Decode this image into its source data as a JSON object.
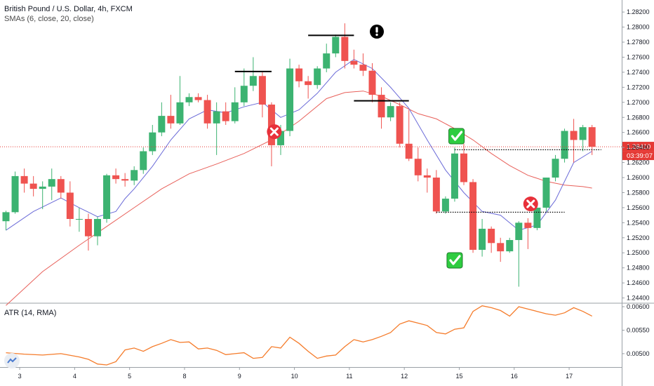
{
  "legend": {
    "title": "British Pound / U.S. Dollar, 4h, FXCM",
    "smas": "SMAs (6, close, 20, close)"
  },
  "atr_legend": "ATR (14, RMA)",
  "price_tag": "1.26410",
  "countdown_tag": "03:39:07",
  "colors": {
    "up": "#26a69a",
    "up_fill": "#3cb371",
    "down": "#ef5350",
    "sma_fast": "#6b6bd8",
    "sma_slow": "#e8605a",
    "atr": "#f57c2b",
    "price_line": "#e53935",
    "tag_bg": "#e53935"
  },
  "icons": [
    "warning-icon",
    "cross-icon",
    "check-icon"
  ],
  "chart_data": {
    "type": "candlestick",
    "title": "British Pound / U.S. Dollar, 4h, FXCM",
    "y_ticks": [
      "1.28200",
      "1.28000",
      "1.27800",
      "1.27600",
      "1.27400",
      "1.27200",
      "1.27000",
      "1.26800",
      "1.26600",
      "1.26400",
      "1.26200",
      "1.26000",
      "1.25800",
      "1.25600",
      "1.25400",
      "1.25200",
      "1.25000",
      "1.24800",
      "1.24600",
      "1.24400"
    ],
    "ylim": [
      1.2434,
      1.2836
    ],
    "x_ticks": [
      {
        "label": "3",
        "i": 1.5
      },
      {
        "label": "4",
        "i": 7.5
      },
      {
        "label": "5",
        "i": 13.5
      },
      {
        "label": "8",
        "i": 19.5
      },
      {
        "label": "9",
        "i": 25.5
      },
      {
        "label": "10",
        "i": 31.5
      },
      {
        "label": "11",
        "i": 37.5
      },
      {
        "label": "12",
        "i": 43.5
      },
      {
        "label": "15",
        "i": 49.5
      },
      {
        "label": "16",
        "i": 55.5
      },
      {
        "label": "17",
        "i": 61.5
      }
    ],
    "candles": [
      [
        1.2542,
        1.2556,
        1.253,
        1.2554
      ],
      [
        1.2554,
        1.2608,
        1.2552,
        1.2602
      ],
      [
        1.2602,
        1.2612,
        1.258,
        1.2592
      ],
      [
        1.2592,
        1.2602,
        1.2575,
        1.2585
      ],
      [
        1.2585,
        1.2595,
        1.2558,
        1.2588
      ],
      [
        1.2588,
        1.2612,
        1.257,
        1.2598
      ],
      [
        1.2598,
        1.2602,
        1.2572,
        1.258
      ],
      [
        1.258,
        1.2595,
        1.2535,
        1.2545
      ],
      [
        1.2545,
        1.256,
        1.2528,
        1.2545
      ],
      [
        1.2545,
        1.2552,
        1.2503,
        1.2522
      ],
      [
        1.2522,
        1.2548,
        1.251,
        1.2545
      ],
      [
        1.2545,
        1.2605,
        1.254,
        1.2603
      ],
      [
        1.2603,
        1.2612,
        1.2592,
        1.2598
      ],
      [
        1.2598,
        1.2606,
        1.2588,
        1.2596
      ],
      [
        1.2596,
        1.2615,
        1.259,
        1.261
      ],
      [
        1.261,
        1.264,
        1.2605,
        1.2635
      ],
      [
        1.2635,
        1.267,
        1.263,
        1.266
      ],
      [
        1.266,
        1.27,
        1.2655,
        1.2682
      ],
      [
        1.2682,
        1.271,
        1.2665,
        1.2672
      ],
      [
        1.2672,
        1.2735,
        1.267,
        1.27
      ],
      [
        1.27,
        1.2712,
        1.2695,
        1.2707
      ],
      [
        1.2707,
        1.2712,
        1.27,
        1.2703
      ],
      [
        1.2703,
        1.271,
        1.2665,
        1.2672
      ],
      [
        1.2672,
        1.27,
        1.263,
        1.2688
      ],
      [
        1.2688,
        1.27,
        1.267,
        1.2675
      ],
      [
        1.2675,
        1.272,
        1.2672,
        1.27
      ],
      [
        1.27,
        1.2745,
        1.2695,
        1.2722
      ],
      [
        1.2722,
        1.276,
        1.2715,
        1.2735
      ],
      [
        1.2735,
        1.274,
        1.268,
        1.2697
      ],
      [
        1.2697,
        1.27,
        1.2615,
        1.2643
      ],
      [
        1.2643,
        1.267,
        1.263,
        1.2662
      ],
      [
        1.2662,
        1.2758,
        1.2655,
        1.2745
      ],
      [
        1.2745,
        1.275,
        1.272,
        1.2728
      ],
      [
        1.2728,
        1.2735,
        1.2705,
        1.2723
      ],
      [
        1.2723,
        1.2748,
        1.2718,
        1.2745
      ],
      [
        1.2745,
        1.2778,
        1.274,
        1.2765
      ],
      [
        1.2765,
        1.279,
        1.276,
        1.2787
      ],
      [
        1.2787,
        1.2805,
        1.2745,
        1.2755
      ],
      [
        1.2755,
        1.277,
        1.2745,
        1.275
      ],
      [
        1.275,
        1.2765,
        1.2735,
        1.2742
      ],
      [
        1.2742,
        1.2752,
        1.27,
        1.271
      ],
      [
        1.271,
        1.272,
        1.2665,
        1.268
      ],
      [
        1.268,
        1.27,
        1.2675,
        1.2695
      ],
      [
        1.2695,
        1.27,
        1.264,
        1.2645
      ],
      [
        1.2645,
        1.269,
        1.2622,
        1.2625
      ],
      [
        1.2625,
        1.264,
        1.2595,
        1.2603
      ],
      [
        1.2603,
        1.2612,
        1.258,
        1.26
      ],
      [
        1.26,
        1.261,
        1.2552,
        1.2555
      ],
      [
        1.2555,
        1.2575,
        1.2552,
        1.2572
      ],
      [
        1.2572,
        1.264,
        1.2568,
        1.2632
      ],
      [
        1.2632,
        1.2645,
        1.259,
        1.2594
      ],
      [
        1.2594,
        1.2598,
        1.25,
        1.2504
      ],
      [
        1.2504,
        1.2545,
        1.2495,
        1.2532
      ],
      [
        1.2532,
        1.2535,
        1.25,
        1.2513
      ],
      [
        1.2513,
        1.252,
        1.2488,
        1.2502
      ],
      [
        1.2502,
        1.252,
        1.25,
        1.2517
      ],
      [
        1.2517,
        1.2542,
        1.2455,
        1.254
      ],
      [
        1.254,
        1.2546,
        1.2505,
        1.2533
      ],
      [
        1.2533,
        1.256,
        1.253,
        1.256
      ],
      [
        1.256,
        1.26,
        1.2555,
        1.26
      ],
      [
        1.26,
        1.263,
        1.2595,
        1.2625
      ],
      [
        1.2625,
        1.2665,
        1.262,
        1.2662
      ],
      [
        1.2662,
        1.2678,
        1.262,
        1.265
      ],
      [
        1.265,
        1.267,
        1.2635,
        1.2667
      ],
      [
        1.2667,
        1.267,
        1.263,
        1.2641
      ]
    ],
    "sma_fast": [
      [
        0,
        1.253
      ],
      [
        3,
        1.2555
      ],
      [
        6,
        1.2573
      ],
      [
        8,
        1.256
      ],
      [
        10,
        1.2548
      ],
      [
        12,
        1.2555
      ],
      [
        13,
        1.2572
      ],
      [
        14,
        1.2585
      ],
      [
        16,
        1.2615
      ],
      [
        18,
        1.265
      ],
      [
        20,
        1.2678
      ],
      [
        22,
        1.269
      ],
      [
        24,
        1.2686
      ],
      [
        26,
        1.2694
      ],
      [
        28,
        1.27
      ],
      [
        29,
        1.269
      ],
      [
        30,
        1.268
      ],
      [
        32,
        1.269
      ],
      [
        34,
        1.2712
      ],
      [
        36,
        1.274
      ],
      [
        38,
        1.2757
      ],
      [
        40,
        1.2745
      ],
      [
        42,
        1.272
      ],
      [
        44,
        1.2692
      ],
      [
        46,
        1.265
      ],
      [
        48,
        1.261
      ],
      [
        50,
        1.258
      ],
      [
        52,
        1.2555
      ],
      [
        54,
        1.255
      ],
      [
        56,
        1.253
      ],
      [
        58,
        1.2537
      ],
      [
        60,
        1.257
      ],
      [
        62,
        1.262
      ],
      [
        64,
        1.2635
      ]
    ],
    "sma_slow": [
      [
        0,
        1.243
      ],
      [
        4,
        1.2475
      ],
      [
        8,
        1.251
      ],
      [
        11,
        1.2535
      ],
      [
        14,
        1.256
      ],
      [
        17,
        1.2585
      ],
      [
        20,
        1.2605
      ],
      [
        23,
        1.2618
      ],
      [
        26,
        1.2632
      ],
      [
        29,
        1.265
      ],
      [
        32,
        1.2675
      ],
      [
        35,
        1.2705
      ],
      [
        37,
        1.2713
      ],
      [
        39,
        1.2715
      ],
      [
        41,
        1.2708
      ],
      [
        43,
        1.2697
      ],
      [
        45,
        1.2685
      ],
      [
        47,
        1.2678
      ],
      [
        49,
        1.2665
      ],
      [
        51,
        1.265
      ],
      [
        53,
        1.2632
      ],
      [
        55,
        1.2616
      ],
      [
        57,
        1.2603
      ],
      [
        59,
        1.2595
      ],
      [
        61,
        1.259
      ],
      [
        63,
        1.2588
      ],
      [
        64,
        1.2586
      ]
    ],
    "atr_ticks": [
      "0.00600",
      "0.00550",
      "0.00500"
    ],
    "atr_ylim": [
      0.00473,
      0.00606
    ],
    "atr": [
      [
        0,
        0.00502
      ],
      [
        2,
        0.00499
      ],
      [
        4,
        0.00497
      ],
      [
        6,
        0.005
      ],
      [
        8,
        0.00493
      ],
      [
        9,
        0.00488
      ],
      [
        10,
        0.00478
      ],
      [
        11,
        0.00476
      ],
      [
        12,
        0.00483
      ],
      [
        13,
        0.00508
      ],
      [
        14,
        0.00512
      ],
      [
        15,
        0.00505
      ],
      [
        16,
        0.00515
      ],
      [
        17,
        0.00522
      ],
      [
        18,
        0.0053
      ],
      [
        19,
        0.00524
      ],
      [
        20,
        0.00525
      ],
      [
        21,
        0.0051
      ],
      [
        22,
        0.00512
      ],
      [
        23,
        0.00507
      ],
      [
        24,
        0.00498
      ],
      [
        25,
        0.005
      ],
      [
        26,
        0.00502
      ],
      [
        27,
        0.0049
      ],
      [
        28,
        0.00492
      ],
      [
        29,
        0.00515
      ],
      [
        30,
        0.00512
      ],
      [
        31,
        0.00535
      ],
      [
        32,
        0.00522
      ],
      [
        33,
        0.00505
      ],
      [
        34,
        0.0049
      ],
      [
        35,
        0.00495
      ],
      [
        36,
        0.00497
      ],
      [
        37,
        0.00515
      ],
      [
        38,
        0.0053
      ],
      [
        39,
        0.00525
      ],
      [
        40,
        0.0053
      ],
      [
        41,
        0.00537
      ],
      [
        42,
        0.00545
      ],
      [
        43,
        0.00563
      ],
      [
        44,
        0.0057
      ],
      [
        45,
        0.00565
      ],
      [
        46,
        0.0056
      ],
      [
        47,
        0.00545
      ],
      [
        48,
        0.00542
      ],
      [
        49,
        0.00552
      ],
      [
        50,
        0.00555
      ],
      [
        51,
        0.0059
      ],
      [
        52,
        0.00602
      ],
      [
        53,
        0.00598
      ],
      [
        54,
        0.00592
      ],
      [
        55,
        0.0058
      ],
      [
        56,
        0.006
      ],
      [
        57,
        0.00595
      ],
      [
        58,
        0.0059
      ],
      [
        59,
        0.00585
      ],
      [
        60,
        0.00582
      ],
      [
        61,
        0.00587
      ],
      [
        62,
        0.00598
      ],
      [
        63,
        0.0059
      ],
      [
        64,
        0.0058
      ]
    ],
    "annotations": {
      "current_price": 1.2641,
      "resistance_lines": [
        {
          "from": 25,
          "to": 29,
          "y": 1.2741
        },
        {
          "from": 33,
          "to": 38,
          "y": 1.2789
        },
        {
          "from": 38,
          "to": 44,
          "y": 1.2702
        }
      ],
      "dotted_levels": [
        {
          "from": 47,
          "to": 61,
          "y": 1.2554
        },
        {
          "from": 49,
          "to": 65,
          "y": 1.2637
        }
      ],
      "markers": [
        {
          "type": "warning",
          "i": 40.5,
          "y": 1.2794
        },
        {
          "type": "cross",
          "i": 29.3,
          "y": 1.2661
        },
        {
          "type": "cross",
          "i": 57.3,
          "y": 1.2565
        },
        {
          "type": "check",
          "i": 49.2,
          "y": 1.2655
        },
        {
          "type": "check",
          "i": 49.0,
          "y": 1.249
        }
      ]
    }
  }
}
